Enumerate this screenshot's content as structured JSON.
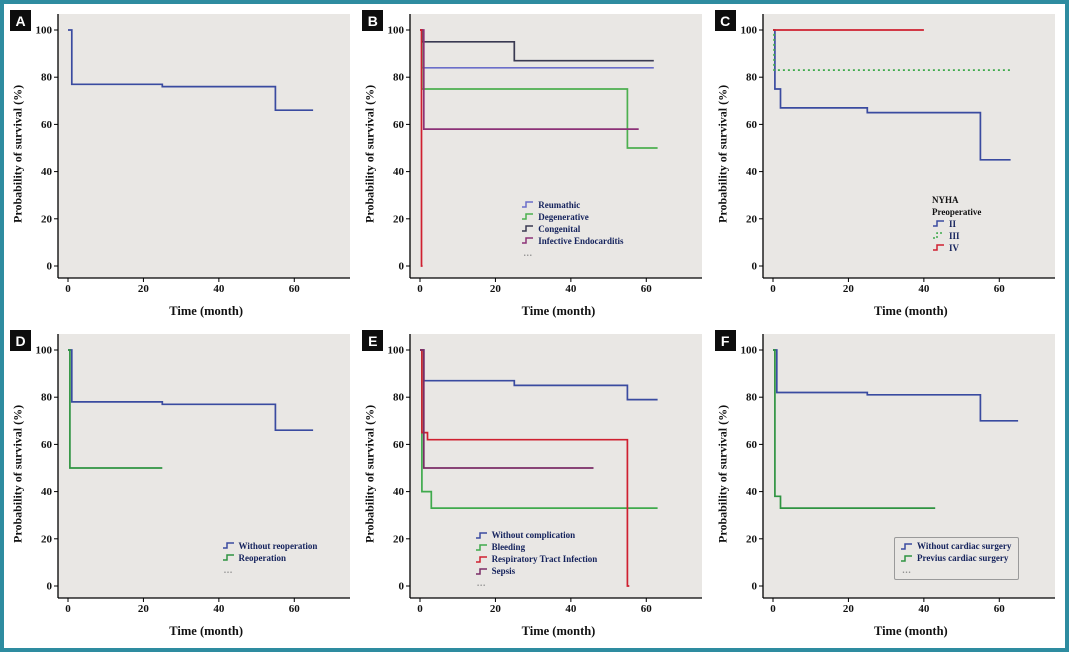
{
  "theme": {
    "border_color": "#2e8ca0",
    "plot_bg": "#e9e7e4",
    "axis_color": "#000000",
    "legend_text_color": "#14225c"
  },
  "chart_data": [
    {
      "panel": "A",
      "type": "line",
      "step": true,
      "xlabel": "Time (month)",
      "ylabel": "Probability of survival (%)",
      "xlim": [
        0,
        70
      ],
      "ylim": [
        0,
        100
      ],
      "xticks": [
        0,
        20,
        40,
        60
      ],
      "yticks": [
        0,
        20,
        40,
        60,
        80,
        100
      ],
      "grid": false,
      "series": [
        {
          "name": "",
          "color": "#3a4ba0",
          "points": [
            [
              0,
              100
            ],
            [
              1,
              77
            ],
            [
              25,
              76
            ],
            [
              55,
              66
            ]
          ],
          "xend": 65
        }
      ],
      "legend": null
    },
    {
      "panel": "B",
      "type": "line",
      "step": true,
      "xlabel": "Time (month)",
      "ylabel": "Probability of survival (%)",
      "xlim": [
        0,
        70
      ],
      "ylim": [
        0,
        100
      ],
      "xticks": [
        0,
        20,
        40,
        60
      ],
      "yticks": [
        0,
        20,
        40,
        60,
        80,
        100
      ],
      "grid": false,
      "series": [
        {
          "name": "Reumathic",
          "color": "#6b6ec9",
          "points": [
            [
              0,
              100
            ],
            [
              0.5,
              84
            ]
          ],
          "xend": 62
        },
        {
          "name": "Degenerative",
          "color": "#4cb04f",
          "points": [
            [
              0,
              100
            ],
            [
              0.5,
              75
            ],
            [
              55,
              50
            ]
          ],
          "xend": 63
        },
        {
          "name": "Congenital",
          "color": "#3a3a52",
          "points": [
            [
              0,
              100
            ],
            [
              0.5,
              95
            ],
            [
              25,
              87
            ]
          ],
          "xend": 62
        },
        {
          "name": "Infective Endocarditis",
          "color": "#8c3277",
          "points": [
            [
              0,
              100
            ],
            [
              1,
              58
            ]
          ],
          "xend": 58
        },
        {
          "name": "",
          "color": "#cf2030",
          "points": [
            [
              0,
              100
            ],
            [
              0.4,
              0
            ]
          ],
          "xend": 0.7
        }
      ],
      "legend": {
        "title": null,
        "pos": [
          0.38,
          0.7
        ],
        "footnote": "…",
        "box": false
      }
    },
    {
      "panel": "C",
      "type": "line",
      "step": true,
      "xlabel": "Time (month)",
      "ylabel": "Probability of survival (%)",
      "xlim": [
        0,
        70
      ],
      "ylim": [
        0,
        100
      ],
      "xticks": [
        0,
        20,
        40,
        60
      ],
      "yticks": [
        0,
        20,
        40,
        60,
        80,
        100
      ],
      "grid": false,
      "series": [
        {
          "name": "II",
          "color": "#3a4ba0",
          "points": [
            [
              0,
              100
            ],
            [
              0.5,
              75
            ],
            [
              2,
              67
            ],
            [
              25,
              65
            ],
            [
              55,
              45
            ]
          ],
          "xend": 63
        },
        {
          "name": "III",
          "color": "#3faa4c",
          "dash": "2,3",
          "points": [
            [
              0,
              100
            ],
            [
              0.3,
              83
            ]
          ],
          "xend": 63
        },
        {
          "name": "IV",
          "color": "#cf2030",
          "points": [
            [
              0,
              100
            ]
          ],
          "xend": 40
        }
      ],
      "legend": {
        "title": "NYHA\nPreoperative",
        "pos": [
          0.58,
          0.68
        ],
        "footnote": null,
        "box": false
      }
    },
    {
      "panel": "D",
      "type": "line",
      "step": true,
      "xlabel": "Time (month)",
      "ylabel": "Probability of survival (%)",
      "xlim": [
        0,
        70
      ],
      "ylim": [
        0,
        100
      ],
      "xticks": [
        0,
        20,
        40,
        60
      ],
      "yticks": [
        0,
        20,
        40,
        60,
        80,
        100
      ],
      "grid": false,
      "series": [
        {
          "name": "Without reoperation",
          "color": "#3a4ba0",
          "points": [
            [
              0,
              100
            ],
            [
              1,
              78
            ],
            [
              25,
              77
            ],
            [
              55,
              66
            ]
          ],
          "xend": 65
        },
        {
          "name": "Reoperation",
          "color": "#2f9441",
          "points": [
            [
              0,
              100
            ],
            [
              0.5,
              50
            ]
          ],
          "xend": 25
        }
      ],
      "legend": {
        "title": null,
        "pos": [
          0.56,
          0.78
        ],
        "footnote": "…",
        "box": false
      }
    },
    {
      "panel": "E",
      "type": "line",
      "step": true,
      "xlabel": "Time (month)",
      "ylabel": "Probability of survival (%)",
      "xlim": [
        0,
        70
      ],
      "ylim": [
        0,
        100
      ],
      "xticks": [
        0,
        20,
        40,
        60
      ],
      "yticks": [
        0,
        20,
        40,
        60,
        80,
        100
      ],
      "grid": false,
      "series": [
        {
          "name": "Without complication",
          "color": "#3a4ba0",
          "points": [
            [
              0,
              100
            ],
            [
              1,
              87
            ],
            [
              25,
              85
            ],
            [
              55,
              79
            ]
          ],
          "xend": 63
        },
        {
          "name": "Bleeding",
          "color": "#3faa4c",
          "points": [
            [
              0,
              100
            ],
            [
              0.5,
              40
            ],
            [
              3,
              33
            ]
          ],
          "xend": 63
        },
        {
          "name": "Respiratory Tract Infection",
          "color": "#cf2030",
          "points": [
            [
              0,
              100
            ],
            [
              0.5,
              65
            ],
            [
              2,
              62
            ],
            [
              55,
              0
            ]
          ],
          "xend": 55.5
        },
        {
          "name": "Sepsis",
          "color": "#7a2d66",
          "points": [
            [
              0,
              100
            ],
            [
              1,
              50
            ]
          ],
          "xend": 46
        }
      ],
      "legend": {
        "title": null,
        "pos": [
          0.22,
          0.74
        ],
        "footnote": "…",
        "box": false
      }
    },
    {
      "panel": "F",
      "type": "line",
      "step": true,
      "xlabel": "Time (month)",
      "ylabel": "Probability of survival (%)",
      "xlim": [
        0,
        70
      ],
      "ylim": [
        0,
        100
      ],
      "xticks": [
        0,
        20,
        40,
        60
      ],
      "yticks": [
        0,
        20,
        40,
        60,
        80,
        100
      ],
      "grid": false,
      "series": [
        {
          "name": "Without cardiac surgery",
          "color": "#3a4ba0",
          "points": [
            [
              0,
              100
            ],
            [
              1,
              82
            ],
            [
              25,
              81
            ],
            [
              55,
              70
            ]
          ],
          "xend": 65
        },
        {
          "name": "Previus cardiac surgery",
          "color": "#2f9441",
          "points": [
            [
              0,
              100
            ],
            [
              0.5,
              38
            ],
            [
              2,
              33
            ]
          ],
          "xend": 43
        }
      ],
      "legend": {
        "title": null,
        "pos": [
          0.45,
          0.77
        ],
        "footnote": "…",
        "box": true
      }
    }
  ]
}
